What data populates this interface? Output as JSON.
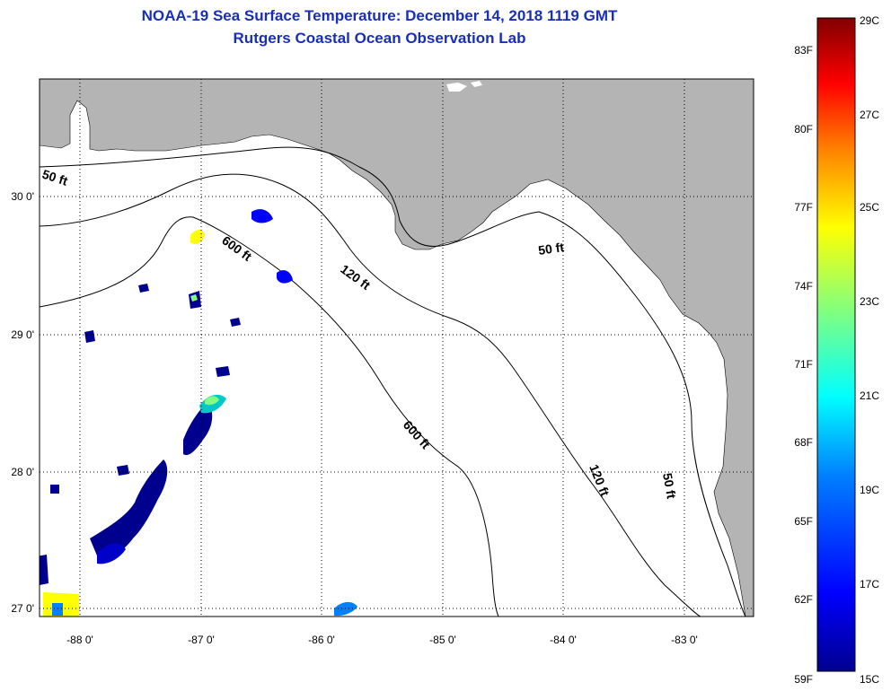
{
  "title": {
    "line1": "NOAA-19 Sea Surface Temperature:  December 14, 2018 1119 GMT",
    "line2": "Rutgers Coastal Ocean Observation Lab"
  },
  "axes": {
    "x_ticks": [
      "-88 0'",
      "-87 0'",
      "-86 0'",
      "-85 0'",
      "-84 0'",
      "-83 0'"
    ],
    "y_ticks": [
      "30 0'",
      "29 0'",
      "28 0'",
      "27 0'"
    ]
  },
  "contours": {
    "50ft_west": "50 ft",
    "50ft_mid": "50 ft",
    "50ft_east": "50 ft",
    "120ft_north": "120 ft",
    "120ft_south": "120 ft",
    "600ft_north": "600 ft",
    "600ft_south": "600 ft"
  },
  "colorbar": {
    "fahrenheit": [
      "83F",
      "80F",
      "77F",
      "74F",
      "71F",
      "68F",
      "65F",
      "62F",
      "59F"
    ],
    "celsius": [
      "29C",
      "27C",
      "25C",
      "23C",
      "21C",
      "19C",
      "17C",
      "15C"
    ],
    "colors": [
      "#00008f",
      "#0000ff",
      "#0080ff",
      "#00ffff",
      "#80ff80",
      "#ffff00",
      "#ff8000",
      "#ff0000",
      "#800000"
    ]
  },
  "colors": {
    "land": "#b4b4b4",
    "ocean": "#ffffff",
    "title": "#1a2fb8"
  }
}
